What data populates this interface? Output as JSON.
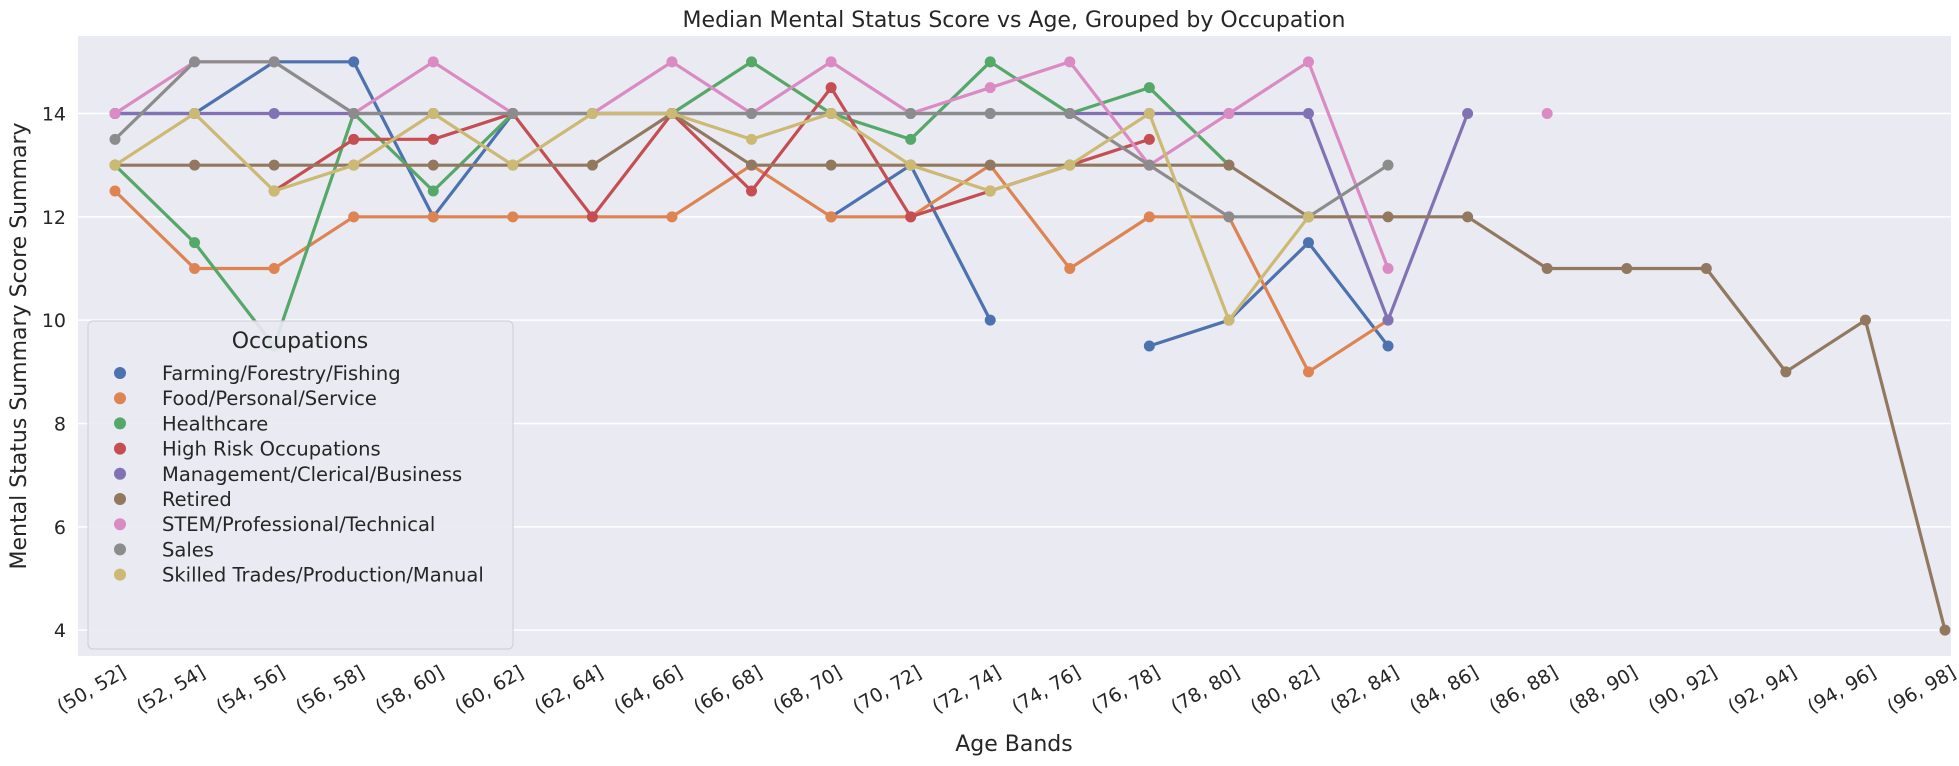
{
  "chart_data": {
    "type": "line",
    "title": "Median Mental Status Score vs Age, Grouped by Occupation",
    "xlabel": "Age Bands",
    "ylabel": "Mental Status Summary Score Summary",
    "ylim": [
      3.5,
      15.5
    ],
    "yticks": [
      4,
      6,
      8,
      10,
      12,
      14
    ],
    "grid": true,
    "legend_placement": "lower-left",
    "legend_title": "Occupations",
    "categories": [
      "(50, 52]",
      "(52, 54]",
      "(54, 56]",
      "(56, 58]",
      "(58, 60]",
      "(60, 62]",
      "(62, 64]",
      "(64, 66]",
      "(66, 68]",
      "(68, 70]",
      "(70, 72]",
      "(72, 74]",
      "(74, 76]",
      "(76, 78]",
      "(78, 80]",
      "(80, 82]",
      "(82, 84]",
      "(84, 86]",
      "(86, 88]",
      "(88, 90]",
      "(90, 92]",
      "(92, 94]",
      "(94, 96]",
      "(96, 98]"
    ],
    "series": [
      {
        "name": "Farming/Forestry/Fishing",
        "color": "#4c72b0",
        "values": [
          14,
          14,
          15,
          15,
          12,
          14,
          null,
          null,
          null,
          12,
          13,
          10,
          null,
          9.5,
          10,
          11.5,
          9.5,
          null,
          null,
          null,
          null,
          null,
          null,
          null
        ]
      },
      {
        "name": "Food/Personal/Service",
        "color": "#dd8452",
        "values": [
          12.5,
          11,
          11,
          12,
          12,
          12,
          12,
          12,
          13,
          12,
          12,
          13,
          11,
          12,
          12,
          9,
          10,
          null,
          null,
          null,
          null,
          null,
          null,
          null
        ]
      },
      {
        "name": "Healthcare",
        "color": "#55a868",
        "values": [
          13,
          11.5,
          9.5,
          14,
          12.5,
          14,
          null,
          14,
          15,
          14,
          13.5,
          15,
          14,
          14.5,
          13,
          null,
          null,
          null,
          null,
          null,
          null,
          null,
          null,
          null
        ]
      },
      {
        "name": "High Risk Occupations",
        "color": "#c44e52",
        "values": [
          null,
          null,
          12.5,
          13.5,
          13.5,
          14,
          12,
          14,
          12.5,
          14.5,
          12,
          12.5,
          13,
          13.5,
          null,
          null,
          null,
          null,
          null,
          null,
          null,
          null,
          null,
          null
        ]
      },
      {
        "name": "Management/Clerical/Business",
        "color": "#8172b3",
        "values": [
          14,
          14,
          14,
          14,
          14,
          14,
          14,
          14,
          14,
          14,
          14,
          14,
          14,
          14,
          14,
          14,
          10,
          14,
          null,
          null,
          null,
          null,
          null,
          null
        ]
      },
      {
        "name": "Retired",
        "color": "#937860",
        "values": [
          13,
          13,
          13,
          13,
          13,
          13,
          13,
          14,
          13,
          13,
          13,
          13,
          13,
          13,
          13,
          12,
          12,
          12,
          11,
          11,
          11,
          9,
          10,
          4
        ]
      },
      {
        "name": "STEM/Professional/Technical",
        "color": "#da8bc3",
        "values": [
          14,
          15,
          15,
          14,
          15,
          14,
          14,
          15,
          14,
          15,
          14,
          14.5,
          15,
          13,
          14,
          15,
          11,
          null,
          14,
          null,
          null,
          null,
          null,
          null
        ]
      },
      {
        "name": "Sales",
        "color": "#8c8c8c",
        "values": [
          13.5,
          15,
          15,
          14,
          14,
          14,
          14,
          14,
          14,
          14,
          14,
          14,
          14,
          13,
          12,
          12,
          13,
          null,
          null,
          null,
          null,
          null,
          null,
          null
        ]
      },
      {
        "name": "Skilled Trades/Production/Manual",
        "color": "#ccb974",
        "values": [
          13,
          14,
          12.5,
          13,
          14,
          13,
          14,
          14,
          13.5,
          14,
          13,
          12.5,
          13,
          14,
          10,
          12,
          null,
          null,
          null,
          null,
          null,
          null,
          null,
          null
        ]
      }
    ]
  }
}
